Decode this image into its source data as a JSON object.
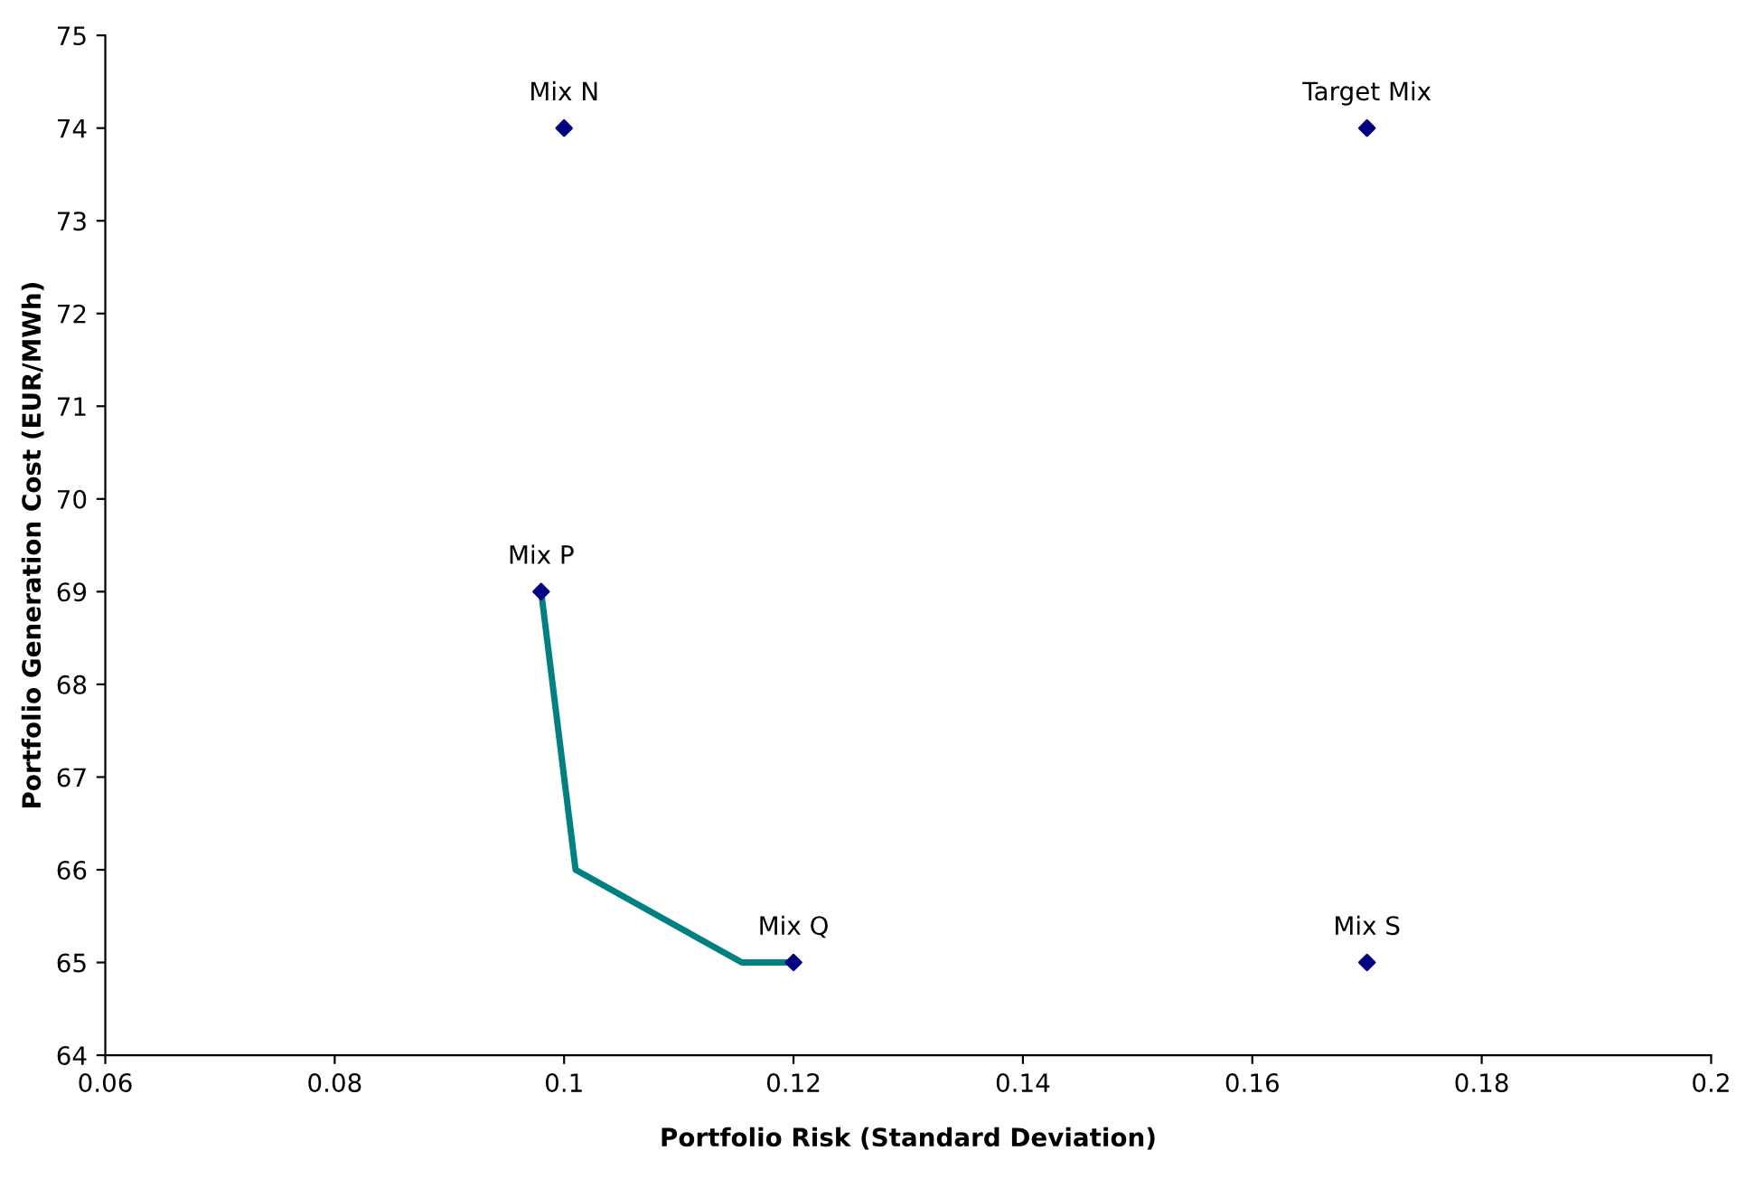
{
  "chart_data": {
    "type": "line",
    "xlabel": "Portfolio Risk (Standard Deviation)",
    "ylabel": "Portfolio Generation Cost (EUR/MWh)",
    "xlim": [
      0.06,
      0.2
    ],
    "xticks": [
      0.06,
      0.08,
      0.1,
      0.12,
      0.14,
      0.16,
      0.18,
      0.2
    ],
    "ylim": [
      64,
      75
    ],
    "yticks": [
      64,
      65,
      66,
      67,
      68,
      69,
      70,
      71,
      72,
      73,
      74,
      75
    ],
    "grid": false,
    "legend": false,
    "series": [
      {
        "color": "#008080",
        "x": [
          0.098,
          0.101,
          0.1155,
          0.12
        ],
        "values": [
          69,
          66,
          65,
          65
        ],
        "marker": "none",
        "line_style": "solid"
      },
      {
        "type": "scatter",
        "color": "#000080",
        "x": [
          0.1,
          0.17,
          0.098,
          0.12,
          0.17
        ],
        "values": [
          74,
          74,
          69,
          65,
          65
        ],
        "marker": "diamond"
      }
    ],
    "annotations": [
      {
        "text": "Mix N",
        "x": 0.1,
        "y": 74
      },
      {
        "text": "Target Mix",
        "x": 0.17,
        "y": 74
      },
      {
        "text": "Mix P",
        "x": 0.098,
        "y": 69
      },
      {
        "text": "Mix Q",
        "x": 0.12,
        "y": 65
      },
      {
        "text": "Mix S",
        "x": 0.17,
        "y": 65
      }
    ]
  }
}
